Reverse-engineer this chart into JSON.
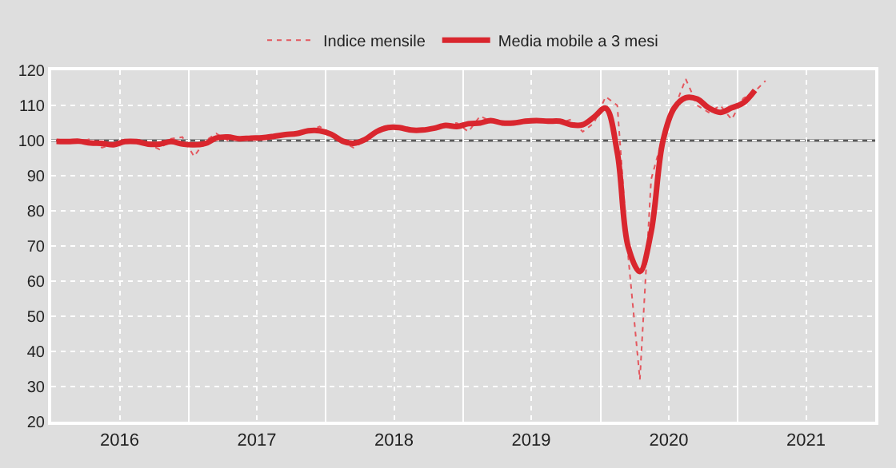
{
  "chart_data": {
    "type": "line",
    "x": [
      "2016-01-15",
      "2016-02-15",
      "2016-03-15",
      "2016-04-15",
      "2016-05-15",
      "2016-06-15",
      "2016-07-15",
      "2016-08-15",
      "2016-09-15",
      "2016-10-15",
      "2016-11-15",
      "2016-12-15",
      "2017-01-15",
      "2017-02-15",
      "2017-03-15",
      "2017-04-15",
      "2017-05-15",
      "2017-06-15",
      "2017-07-15",
      "2017-08-15",
      "2017-09-15",
      "2017-10-15",
      "2017-11-15",
      "2017-12-15",
      "2018-01-15",
      "2018-02-15",
      "2018-03-15",
      "2018-04-15",
      "2018-05-15",
      "2018-06-15",
      "2018-07-15",
      "2018-08-15",
      "2018-09-15",
      "2018-10-15",
      "2018-11-15",
      "2018-12-15",
      "2019-01-15",
      "2019-02-15",
      "2019-03-15",
      "2019-04-15",
      "2019-05-15",
      "2019-06-15",
      "2019-07-15",
      "2019-08-15",
      "2019-09-15",
      "2019-10-15",
      "2019-11-15",
      "2019-12-15",
      "2020-01-15",
      "2020-02-15",
      "2020-03-15",
      "2020-04-15",
      "2020-05-15",
      "2020-06-15",
      "2020-07-15",
      "2020-08-15",
      "2020-09-15",
      "2020-10-15",
      "2020-11-15",
      "2020-12-15",
      "2021-01-15",
      "2021-02-15",
      "2021-03-15"
    ],
    "series": [
      {
        "name": "Indice mensile",
        "color": "#e4575e",
        "line_style": "dotted",
        "values": [
          100,
          99.5,
          99.5,
          100.5,
          98,
          99,
          99.5,
          100.5,
          99,
          97.5,
          100.5,
          101,
          95.5,
          100,
          102,
          100,
          101,
          100.5,
          100.5,
          101.5,
          101.5,
          102,
          102.5,
          104,
          102,
          99.5,
          98,
          100,
          103,
          104.5,
          103.5,
          103,
          102.5,
          103.5,
          104.5,
          105,
          102.5,
          107,
          105.5,
          104.5,
          105,
          105.5,
          106,
          105.5,
          105,
          106,
          102.5,
          105,
          112.5,
          110,
          67,
          32,
          89,
          101,
          109,
          117.5,
          110,
          108,
          110,
          106,
          112,
          114,
          117
        ]
      },
      {
        "name": "Media mobile a 3 mesi",
        "color": "#d9262e",
        "line_style": "solid",
        "values": [
          99.8,
          99.7,
          99.8,
          99.3,
          99.2,
          98.8,
          99.7,
          99.7,
          99.0,
          99.0,
          99.7,
          99.0,
          98.8,
          99.2,
          100.7,
          101.0,
          100.5,
          100.7,
          100.8,
          101.2,
          101.7,
          102.0,
          102.8,
          102.8,
          101.8,
          99.8,
          99.2,
          100.3,
          102.5,
          103.7,
          103.7,
          103.0,
          103.0,
          103.5,
          104.3,
          104.0,
          104.8,
          105.0,
          105.7,
          105.0,
          105.0,
          105.5,
          105.7,
          105.5,
          105.5,
          104.5,
          104.5,
          106.7,
          109.2,
          96.5,
          69.7,
          62.7,
          74.0,
          99.7,
          109.2,
          112.2,
          111.8,
          109.3,
          108.0,
          109.3,
          110.7,
          114.3,
          null
        ]
      }
    ],
    "xlim": [
      "2016-01-01",
      "2022-01-01"
    ],
    "xticks": [
      {
        "value": "2016-01-01",
        "label": null
      },
      {
        "value": "2016-07-01",
        "label": "2016"
      },
      {
        "value": "2017-01-01",
        "label": null
      },
      {
        "value": "2017-07-01",
        "label": "2017"
      },
      {
        "value": "2018-01-01",
        "label": null
      },
      {
        "value": "2018-07-01",
        "label": "2018"
      },
      {
        "value": "2019-01-01",
        "label": null
      },
      {
        "value": "2019-07-01",
        "label": "2019"
      },
      {
        "value": "2020-01-01",
        "label": null
      },
      {
        "value": "2020-07-01",
        "label": "2020"
      },
      {
        "value": "2021-01-01",
        "label": null
      },
      {
        "value": "2021-07-01",
        "label": "2021"
      },
      {
        "value": "2022-01-01",
        "label": null
      }
    ],
    "ylim": [
      20,
      120
    ],
    "yticks": [
      20,
      30,
      40,
      50,
      60,
      70,
      80,
      90,
      100,
      110,
      120
    ],
    "ref_lines": [
      {
        "axis": "y",
        "value": 100,
        "color": "#595959"
      }
    ],
    "grid": true,
    "legend": "top",
    "marker": "none"
  }
}
